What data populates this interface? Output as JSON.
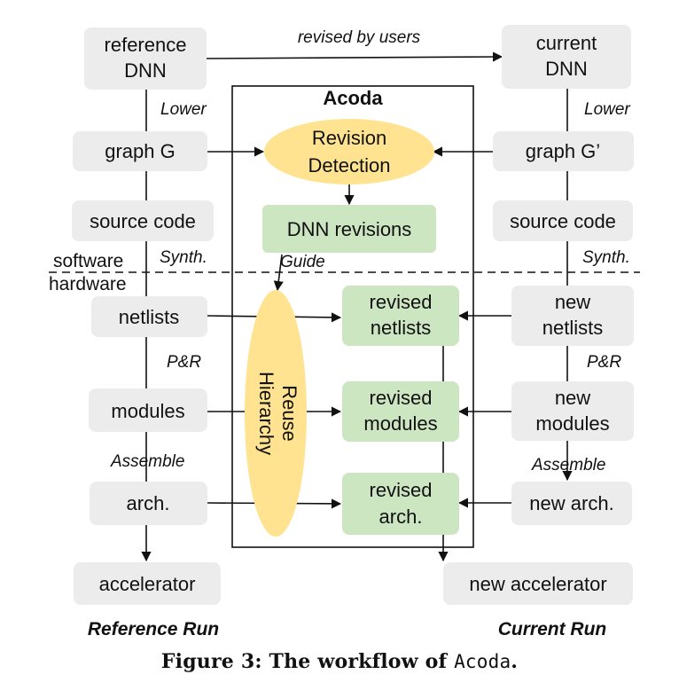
{
  "diagram": {
    "title": "Acoda",
    "reference": {
      "dnn": [
        "reference",
        "DNN"
      ],
      "graph": "graph G",
      "source": "source code",
      "netlists": "netlists",
      "modules": "modules",
      "arch": "arch.",
      "accelerator": "accelerator",
      "run_label": "Reference Run"
    },
    "current": {
      "dnn": [
        "current",
        "DNN"
      ],
      "graph": "graph G’",
      "source": "source code",
      "netlists": [
        "new",
        "netlists"
      ],
      "modules": [
        "new",
        "modules"
      ],
      "arch": "new arch.",
      "accelerator": "new accelerator",
      "run_label": "Current Run"
    },
    "acoda": {
      "revision_detection": [
        "Revision",
        "Detection"
      ],
      "dnn_revisions": "DNN revisions",
      "reuse_hierarchy": [
        "Reuse",
        "Hierarchy"
      ],
      "revised_netlists": [
        "revised",
        "netlists"
      ],
      "revised_modules": [
        "revised",
        "modules"
      ],
      "revised_arch": [
        "revised",
        "arch."
      ]
    },
    "edge_labels": {
      "revised_by_users": "revised by users",
      "lower_left": "Lower",
      "lower_right": "Lower",
      "synth_left": "Synth.",
      "synth_right": "Synth.",
      "guide": "Guide",
      "pr_left": "P&R",
      "pr_right": "P&R",
      "assemble_left": "Assemble",
      "assemble_right": "Assemble"
    },
    "divider": {
      "software": "software",
      "hardware": "hardware"
    },
    "colors": {
      "gray_box": "#ececec",
      "green_box": "#cde6c2",
      "yellow_ellipse": "#ffe390",
      "line": "#111111"
    }
  },
  "caption": {
    "prefix": "Figure 3: The workflow of ",
    "name": "Acoda",
    "suffix": "."
  }
}
